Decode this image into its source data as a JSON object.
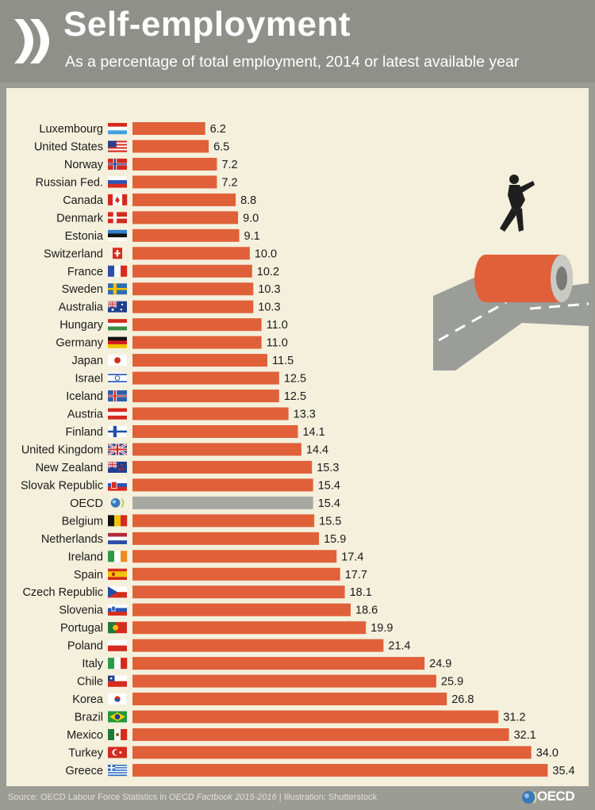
{
  "header": {
    "title": "Self-employment",
    "subtitle": "As a percentage of total employment, 2014 or latest available year"
  },
  "footer": {
    "source_prefix": "Source: OECD Labour Force Statistics in ",
    "source_publication": "OECD Factbook 2015-2016",
    "source_suffix": " | Illustration: Shutterstock",
    "logo_text": "OECD"
  },
  "colors": {
    "bar": "#e0603a",
    "highlight_bar": "#a7a8a2",
    "panel": "#f4f0dc",
    "background": "#9b9c94"
  },
  "chart_data": {
    "type": "bar",
    "orientation": "horizontal",
    "title": "Self-employment",
    "subtitle": "As a percentage of total employment, 2014 or latest available year",
    "unit": "%",
    "highlight": "OECD",
    "categories": [
      "Luxembourg",
      "United States",
      "Norway",
      "Russian Fed.",
      "Canada",
      "Denmark",
      "Estonia",
      "Switzerland",
      "France",
      "Sweden",
      "Australia",
      "Hungary",
      "Germany",
      "Japan",
      "Israel",
      "Iceland",
      "Austria",
      "Finland",
      "United Kingdom",
      "New Zealand",
      "Slovak Republic",
      "OECD",
      "Belgium",
      "Netherlands",
      "Ireland",
      "Spain",
      "Czech Republic",
      "Slovenia",
      "Portugal",
      "Poland",
      "Italy",
      "Chile",
      "Korea",
      "Brazil",
      "Mexico",
      "Turkey",
      "Greece"
    ],
    "values": [
      6.2,
      6.5,
      7.2,
      7.2,
      8.8,
      9.0,
      9.1,
      10.0,
      10.2,
      10.3,
      10.3,
      11.0,
      11.0,
      11.5,
      12.5,
      12.5,
      13.3,
      14.1,
      14.4,
      15.3,
      15.4,
      15.4,
      15.5,
      15.9,
      17.4,
      17.7,
      18.1,
      18.6,
      19.9,
      21.4,
      24.9,
      25.9,
      26.8,
      31.2,
      32.1,
      34.0,
      35.4
    ],
    "value_labels": [
      "6.2",
      "6.5",
      "7.2",
      "7.2",
      "8.8",
      "9.0",
      "9.1",
      "10.0",
      "10.2",
      "10.3",
      "10.3",
      "11.0",
      "11.0",
      "11.5",
      "12.5",
      "12.5",
      "13.3",
      "14.1",
      "14.4",
      "15.3",
      "15.4",
      "15.4",
      "15.5",
      "15.9",
      "17.4",
      "17.7",
      "18.1",
      "18.6",
      "19.9",
      "21.4",
      "24.9",
      "25.9",
      "26.8",
      "31.2",
      "32.1",
      "34.0",
      "35.4"
    ],
    "flags": [
      "lu",
      "us",
      "no",
      "ru",
      "ca",
      "dk",
      "ee",
      "ch",
      "fr",
      "se",
      "au",
      "hu",
      "de",
      "jp",
      "il",
      "is",
      "at",
      "fi",
      "gb",
      "nz",
      "sk",
      "oecd",
      "be",
      "nl",
      "ie",
      "es",
      "cz",
      "si",
      "pt",
      "pl",
      "it",
      "cl",
      "kr",
      "br",
      "mx",
      "tr",
      "gr"
    ],
    "xlim": [
      0,
      36
    ],
    "grid": false,
    "legend": "none"
  }
}
